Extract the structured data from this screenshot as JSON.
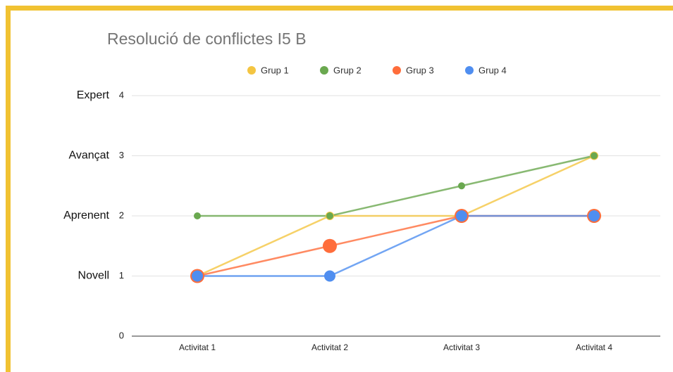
{
  "chart_data": {
    "type": "line",
    "title": "Resolució de conflictes I5 B",
    "categories": [
      "Activitat 1",
      "Activitat 2",
      "Activitat 3",
      "Activitat 4"
    ],
    "series": [
      {
        "name": "Grup 1",
        "color": "#f4c542",
        "values": [
          1,
          2,
          2,
          3
        ]
      },
      {
        "name": "Grup 2",
        "color": "#6aa84f",
        "values": [
          2,
          2,
          2.5,
          3
        ]
      },
      {
        "name": "Grup 3",
        "color": "#ff6d3b",
        "values": [
          1,
          1.5,
          2,
          2
        ]
      },
      {
        "name": "Grup 4",
        "color": "#4f8ef0",
        "values": [
          1,
          1,
          2,
          2
        ]
      }
    ],
    "ylim": [
      0,
      4
    ],
    "yticks": [
      0,
      1,
      2,
      3,
      4
    ],
    "level_labels": [
      {
        "value": 4,
        "label": "Expert"
      },
      {
        "value": 3,
        "label": "Avançat"
      },
      {
        "value": 2,
        "label": "Aprenent"
      },
      {
        "value": 1,
        "label": "Novell"
      }
    ],
    "grid": true,
    "legend": "top"
  }
}
